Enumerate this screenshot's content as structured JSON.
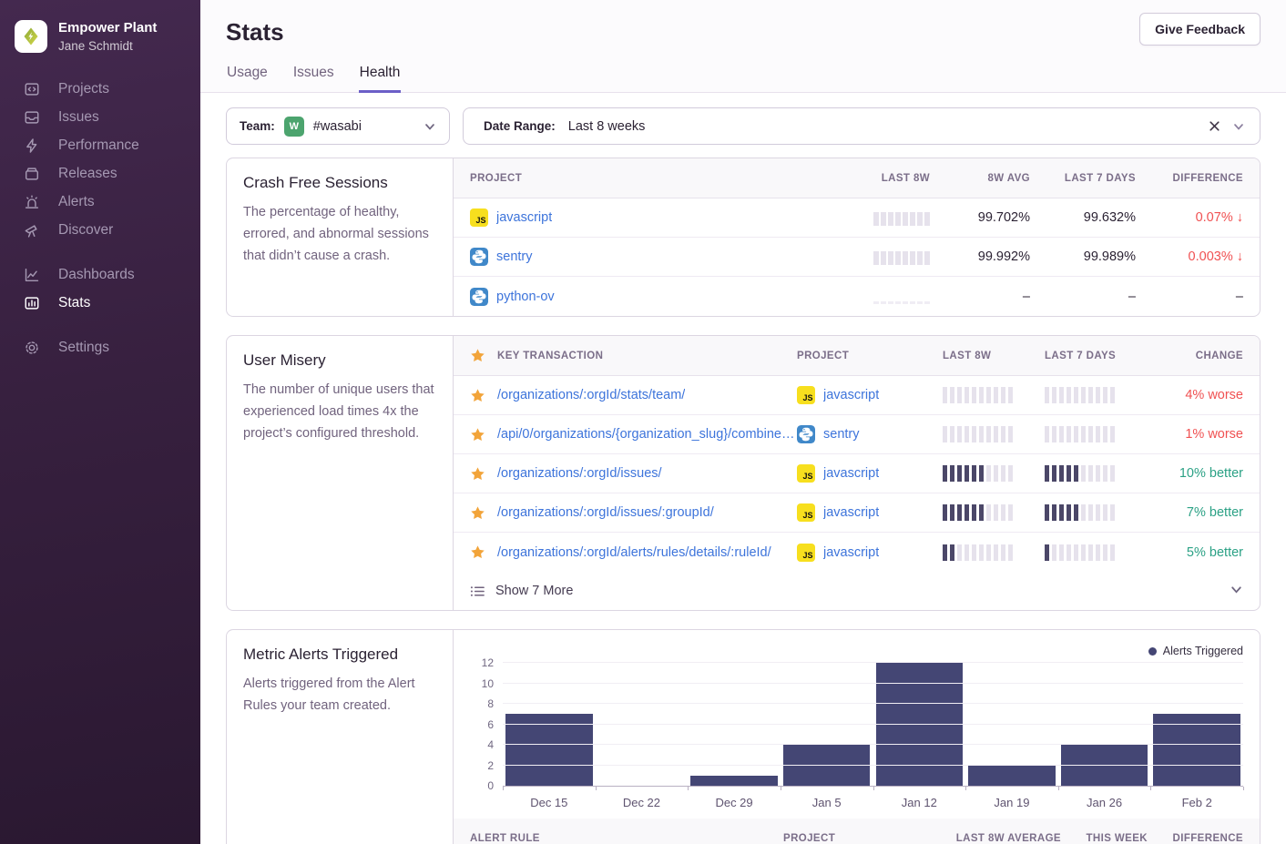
{
  "colors": {
    "accent": "#6c5fc7",
    "link_blue": "#3d74db",
    "negative_red": "#f05152",
    "positive_green": "#2ba185",
    "chart_bar": "#444674",
    "team_avatar_green": "#4ca46e",
    "js_icon_yellow": "#f7df1e",
    "python_icon_blue": "#4088c9",
    "star_gold": "#f2a43a"
  },
  "icons": {
    "js_label": "JS",
    "down_arrow": "↓"
  },
  "sidebar": {
    "org_name": "Empower Plant",
    "user_name": "Jane Schmidt",
    "groups": [
      {
        "items": [
          {
            "label": "Projects",
            "icon": "projects"
          },
          {
            "label": "Issues",
            "icon": "issues"
          },
          {
            "label": "Performance",
            "icon": "performance"
          },
          {
            "label": "Releases",
            "icon": "releases"
          },
          {
            "label": "Alerts",
            "icon": "alerts"
          },
          {
            "label": "Discover",
            "icon": "discover"
          }
        ]
      },
      {
        "items": [
          {
            "label": "Dashboards",
            "icon": "dashboards"
          },
          {
            "label": "Stats",
            "icon": "stats",
            "active": true
          }
        ]
      },
      {
        "items": [
          {
            "label": "Settings",
            "icon": "settings"
          }
        ]
      }
    ]
  },
  "header": {
    "title": "Stats",
    "feedback_button": "Give Feedback",
    "tabs": [
      {
        "label": "Usage",
        "active": false
      },
      {
        "label": "Issues",
        "active": false
      },
      {
        "label": "Health",
        "active": true
      }
    ]
  },
  "filters": {
    "team_label": "Team:",
    "team_avatar_letter": "W",
    "team_value": "#wasabi",
    "date_label": "Date Range:",
    "date_value": "Last 8 weeks"
  },
  "crash_free": {
    "title": "Crash Free Sessions",
    "description": "The percentage of healthy, errored, and abnormal sessions that didn’t cause a crash.",
    "columns": [
      "PROJECT",
      "LAST 8W",
      "8W AVG",
      "LAST 7 DAYS",
      "DIFFERENCE"
    ],
    "dash": "–",
    "rows": [
      {
        "project": "javascript",
        "icon": "js",
        "avg": "99.702%",
        "last7": "99.632%",
        "diff": "0.07%",
        "trend": "down",
        "spark": "normal"
      },
      {
        "project": "sentry",
        "icon": "python",
        "avg": "99.992%",
        "last7": "99.989%",
        "diff": "0.003%",
        "trend": "down",
        "spark": "normal"
      },
      {
        "project": "python-ov",
        "icon": "python",
        "avg": "–",
        "last7": "–",
        "diff": "–",
        "trend": "none",
        "spark": "empty"
      }
    ]
  },
  "user_misery": {
    "title": "User Misery",
    "description": "The number of unique users that experienced load times 4x the project’s configured threshold.",
    "columns": [
      "KEY TRANSACTION",
      "PROJECT",
      "LAST 8W",
      "LAST 7 DAYS",
      "CHANGE"
    ],
    "bars_total": 10,
    "rows": [
      {
        "transaction": "/organizations/:orgId/stats/team/",
        "icon": "js",
        "project": "javascript",
        "last8w_filled": 0,
        "last7d_filled": 0,
        "change": "4% worse",
        "sentiment": "worse"
      },
      {
        "transaction": "/api/0/organizations/{organization_slug}/combine…",
        "icon": "python",
        "project": "sentry",
        "last8w_filled": 0,
        "last7d_filled": 0,
        "change": "1% worse",
        "sentiment": "worse"
      },
      {
        "transaction": "/organizations/:orgId/issues/",
        "icon": "js",
        "project": "javascript",
        "last8w_filled": 6,
        "last7d_filled": 5,
        "change": "10% better",
        "sentiment": "better"
      },
      {
        "transaction": "/organizations/:orgId/issues/:groupId/",
        "icon": "js",
        "project": "javascript",
        "last8w_filled": 6,
        "last7d_filled": 5,
        "change": "7% better",
        "sentiment": "better"
      },
      {
        "transaction": "/organizations/:orgId/alerts/rules/details/:ruleId/",
        "icon": "js",
        "project": "javascript",
        "last8w_filled": 2,
        "last7d_filled": 1,
        "change": "5% better",
        "sentiment": "better"
      }
    ],
    "footer_label": "Show 7 More"
  },
  "metric_alerts": {
    "title": "Metric Alerts Triggered",
    "description": "Alerts triggered from the Alert Rules your team created.",
    "table_columns": [
      "ALERT RULE",
      "PROJECT",
      "LAST 8W AVERAGE",
      "THIS WEEK",
      "DIFFERENCE"
    ]
  },
  "chart_data": {
    "type": "bar",
    "title": "Metric Alerts Triggered",
    "categories": [
      "Dec 15",
      "Dec 22",
      "Dec 29",
      "Jan 5",
      "Jan 12",
      "Jan 19",
      "Jan 26",
      "Feb 2"
    ],
    "values": [
      7,
      0,
      1,
      4,
      12,
      2,
      4,
      7
    ],
    "xlabel": "",
    "ylabel": "",
    "ylim": [
      0,
      12
    ],
    "yticks": [
      0,
      2,
      4,
      6,
      8,
      10,
      12
    ],
    "grid": "horizontal",
    "legend_position": "top-right",
    "bar_color": "#444674",
    "legend": [
      {
        "label": "Alerts Triggered",
        "color": "#444674"
      }
    ]
  }
}
